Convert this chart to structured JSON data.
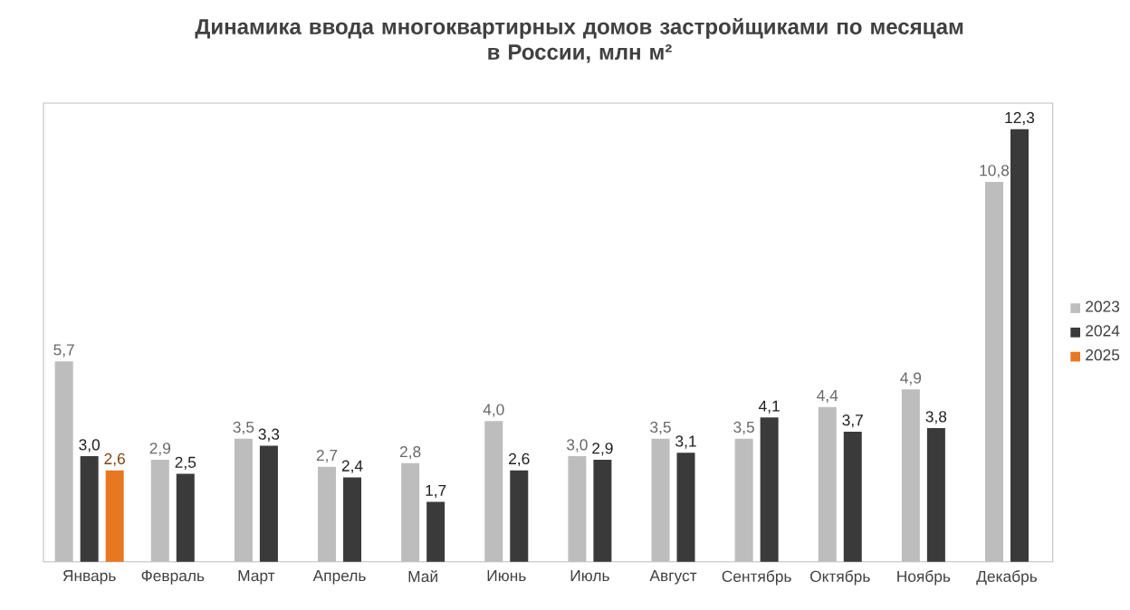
{
  "chart_data": {
    "type": "bar",
    "title": "Динамика ввода многоквартирных домов застройщиками по месяцам\nв России, млн м²",
    "categories": [
      "Январь",
      "Февраль",
      "Март",
      "Апрель",
      "Май",
      "Июнь",
      "Июль",
      "Август",
      "Сентябрь",
      "Октябрь",
      "Ноябрь",
      "Декабрь"
    ],
    "series": [
      {
        "name": "2023",
        "color": "#bdbdbd",
        "values": [
          5.7,
          2.9,
          3.5,
          2.7,
          2.8,
          4.0,
          3.0,
          3.5,
          3.5,
          4.4,
          4.9,
          10.8
        ],
        "value_labels": [
          "5,7",
          "2,9",
          "3,5",
          "2,7",
          "2,8",
          "4,0",
          "3,0",
          "3,5",
          "3,5",
          "4,4",
          "4,9",
          "10,8"
        ]
      },
      {
        "name": "2024",
        "color": "#3a3a3a",
        "values": [
          3.0,
          2.5,
          3.3,
          2.4,
          1.7,
          2.6,
          2.9,
          3.1,
          4.1,
          3.7,
          3.8,
          12.3
        ],
        "value_labels": [
          "3,0",
          "2,5",
          "3,3",
          "2,4",
          "1,7",
          "2,6",
          "2,9",
          "3,1",
          "4,1",
          "3,7",
          "3,8",
          "12,3"
        ]
      },
      {
        "name": "2025",
        "color": "#e87722",
        "values": [
          2.6,
          null,
          null,
          null,
          null,
          null,
          null,
          null,
          null,
          null,
          null,
          null
        ],
        "value_labels": [
          "2,6",
          null,
          null,
          null,
          null,
          null,
          null,
          null,
          null,
          null,
          null,
          null
        ]
      }
    ],
    "legend": "right"
  }
}
